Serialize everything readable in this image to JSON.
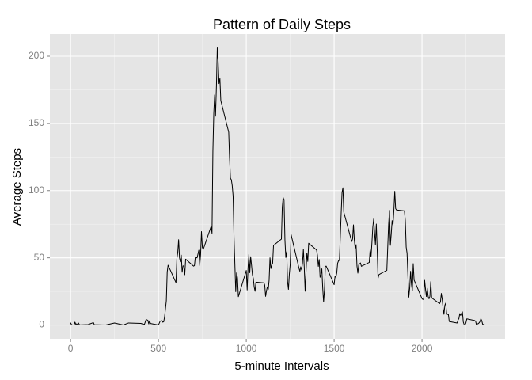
{
  "chart_data": {
    "type": "line",
    "title": "Pattern of Daily Steps",
    "x_label": "5-minute Intervals",
    "y_label": "Average Steps",
    "xlim": [
      -117.75,
      2472.75
    ],
    "xticks": [
      0,
      500,
      1000,
      1500,
      2000
    ],
    "xminorticks": [
      250,
      750,
      1250,
      1750,
      2250
    ],
    "ylim": [
      -10.3,
      216.5
    ],
    "yticks": [
      0,
      50,
      100,
      150,
      200
    ],
    "yminorticks": [
      25,
      75,
      125,
      175
    ],
    "grid": true,
    "x": [
      0,
      5,
      10,
      20,
      25,
      30,
      35,
      40,
      45,
      50,
      55,
      100,
      130,
      135,
      200,
      250,
      300,
      330,
      400,
      420,
      430,
      440,
      445,
      450,
      455,
      500,
      510,
      520,
      525,
      530,
      535,
      545,
      550,
      555,
      600,
      605,
      610,
      615,
      620,
      625,
      630,
      635,
      640,
      645,
      650,
      655,
      700,
      705,
      710,
      720,
      730,
      735,
      740,
      745,
      750,
      755,
      800,
      805,
      810,
      815,
      820,
      825,
      830,
      835,
      840,
      845,
      850,
      855,
      900,
      905,
      910,
      915,
      920,
      925,
      930,
      935,
      940,
      945,
      950,
      955,
      1000,
      1005,
      1010,
      1015,
      1020,
      1025,
      1030,
      1035,
      1040,
      1045,
      1050,
      1055,
      1100,
      1105,
      1110,
      1115,
      1120,
      1125,
      1130,
      1135,
      1140,
      1145,
      1150,
      1155,
      1200,
      1205,
      1210,
      1215,
      1220,
      1225,
      1230,
      1235,
      1240,
      1245,
      1250,
      1255,
      1300,
      1305,
      1310,
      1315,
      1320,
      1325,
      1330,
      1335,
      1340,
      1345,
      1350,
      1355,
      1400,
      1405,
      1410,
      1415,
      1420,
      1425,
      1430,
      1435,
      1440,
      1445,
      1450,
      1455,
      1500,
      1505,
      1510,
      1515,
      1520,
      1525,
      1530,
      1535,
      1540,
      1545,
      1550,
      1555,
      1600,
      1605,
      1610,
      1615,
      1620,
      1625,
      1630,
      1635,
      1640,
      1645,
      1650,
      1655,
      1700,
      1705,
      1710,
      1715,
      1720,
      1725,
      1730,
      1735,
      1740,
      1745,
      1750,
      1755,
      1800,
      1805,
      1810,
      1815,
      1820,
      1825,
      1830,
      1835,
      1840,
      1845,
      1850,
      1855,
      1900,
      1905,
      1910,
      1915,
      1920,
      1925,
      1930,
      1935,
      1940,
      1945,
      1950,
      1955,
      2000,
      2005,
      2010,
      2015,
      2020,
      2025,
      2030,
      2035,
      2040,
      2045,
      2050,
      2055,
      2100,
      2105,
      2110,
      2115,
      2120,
      2125,
      2130,
      2135,
      2140,
      2145,
      2150,
      2155,
      2200,
      2205,
      2210,
      2215,
      2220,
      2225,
      2230,
      2235,
      2240,
      2245,
      2250,
      2255,
      2300,
      2305,
      2310,
      2315,
      2320,
      2325,
      2330,
      2335,
      2340,
      2345,
      2350,
      2355
    ],
    "series": [
      {
        "name": "steps",
        "color": "#000000",
        "values": [
          1.7,
          0.3,
          0.1,
          0,
          2.1,
          0.5,
          0.9,
          0,
          1.5,
          0.2,
          0.1,
          0.3,
          1.8,
          0.2,
          0,
          1.5,
          0,
          1.5,
          1.2,
          0.3,
          4.1,
          3.5,
          0.8,
          3.1,
          1.1,
          0,
          2.9,
          3.3,
          2.1,
          2.4,
          6,
          18,
          39.5,
          44.5,
          31.5,
          49.3,
          53.8,
          63.5,
          50,
          47,
          52,
          39.3,
          44,
          44,
          37.4,
          49,
          43.8,
          44.2,
          50.5,
          49.9,
          55.7,
          44.3,
          52.3,
          69.5,
          57.8,
          56.2,
          73.4,
          68.2,
          129.4,
          157.5,
          171.2,
          155.4,
          177.3,
          206.2,
          195.9,
          179.6,
          183.4,
          167,
          143.5,
          124,
          109.1,
          108.1,
          103.7,
          95.96,
          66.2,
          45.2,
          24.8,
          38.8,
          34.98,
          21.06,
          40.6,
          26.1,
          42.4,
          52.7,
          38.9,
          50.8,
          44.3,
          37.4,
          34.7,
          28.3,
          25.1,
          31.9,
          31.4,
          29.7,
          21.3,
          25.5,
          28.4,
          26.5,
          33.4,
          49.98,
          42,
          44.6,
          46,
          59.2,
          63.9,
          87.7,
          94.8,
          92.8,
          63.4,
          50.2,
          54.5,
          32.4,
          26.5,
          37.7,
          45.1,
          67.3,
          42.3,
          39.9,
          43.3,
          40.98,
          46.2,
          56.4,
          42.8,
          25.1,
          39.97,
          53.5,
          47.3,
          60.8,
          55.8,
          51.96,
          43.6,
          48.7,
          35.5,
          37.5,
          41.8,
          27.5,
          17.1,
          26.1,
          43.6,
          43.8,
          30,
          36.1,
          35.5,
          38.8,
          45.96,
          47.75,
          48.1,
          65.3,
          82.9,
          98.7,
          102.1,
          83.96,
          62.1,
          64.1,
          74.5,
          63.2,
          56.9,
          59.8,
          43.9,
          38.6,
          44.7,
          45.5,
          46.2,
          43.7,
          46.6,
          56.3,
          50.7,
          61.2,
          72.7,
          78.9,
          68.9,
          59.7,
          75.1,
          56.5,
          34.8,
          37.5,
          40.7,
          58,
          74.7,
          85.3,
          59.3,
          67.8,
          77.7,
          74.2,
          85.3,
          99.5,
          86.6,
          85.6,
          84.9,
          77.8,
          58,
          53.4,
          36.3,
          20.7,
          27.4,
          40,
          30.2,
          25.5,
          45.7,
          33.5,
          19.6,
          19,
          19.3,
          33.3,
          26.8,
          21.2,
          27.3,
          21.3,
          19.5,
          21.3,
          32.3,
          20.2,
          15.9,
          17.2,
          23.5,
          19.2,
          12.5,
          8,
          14.7,
          16.3,
          8.7,
          7.8,
          8.1,
          2.6,
          1.5,
          3.7,
          4.8,
          8.5,
          7.1,
          8.7,
          9.8,
          2.2,
          0.3,
          0.1,
          1.6,
          4.6,
          3.3,
          2.8,
          0,
          0.8,
          1,
          1.6,
          2.6,
          4.7,
          3.3,
          0.6,
          0.2,
          1.1
        ]
      }
    ]
  }
}
